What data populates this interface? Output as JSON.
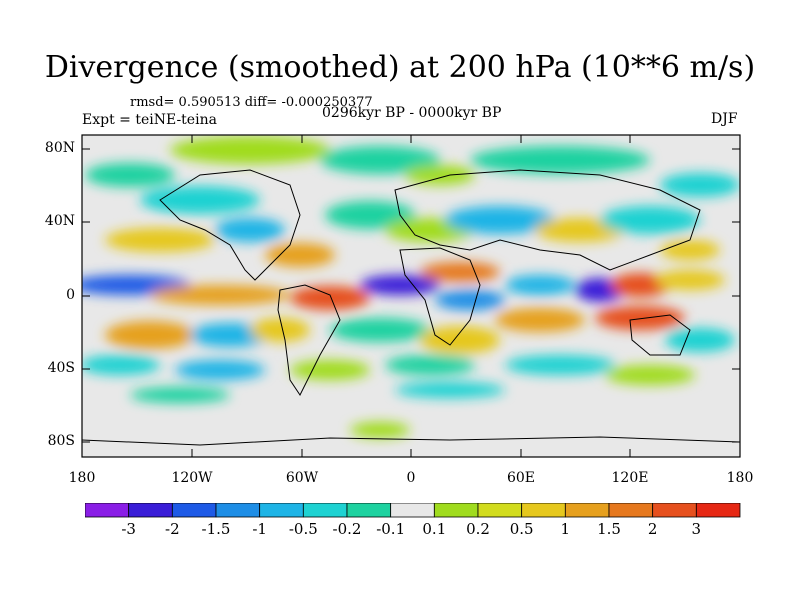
{
  "title": "Divergence (smoothed) at 200 hPa (10**6 m/s)",
  "stats": "rmsd= 0.590513 diff= -0.000250377",
  "experiment": "Expt = teiNE-teina",
  "period": "0296kyr BP - 0000kyr BP",
  "season": "DJF",
  "y_ticks": [
    "80N",
    "40N",
    "0",
    "40S",
    "80S"
  ],
  "x_ticks": [
    "180",
    "120W",
    "60W",
    "0",
    "60E",
    "120E",
    "180"
  ],
  "colorbar": {
    "labels": [
      "-3",
      "-2",
      "-1.5",
      "-1",
      "-0.5",
      "-0.2",
      "-0.1",
      "0.1",
      "0.2",
      "0.5",
      "1",
      "1.5",
      "2",
      "3"
    ],
    "colors": [
      "#8a1ee6",
      "#3a1ed8",
      "#1e5ae6",
      "#1e8ee6",
      "#1eb4e6",
      "#1ed2d2",
      "#1ed2a0",
      "#e8e8e8",
      "#a0dc1e",
      "#d2dc1e",
      "#e6c81e",
      "#e6a01e",
      "#e6781e",
      "#e6501e",
      "#e62814"
    ]
  }
}
